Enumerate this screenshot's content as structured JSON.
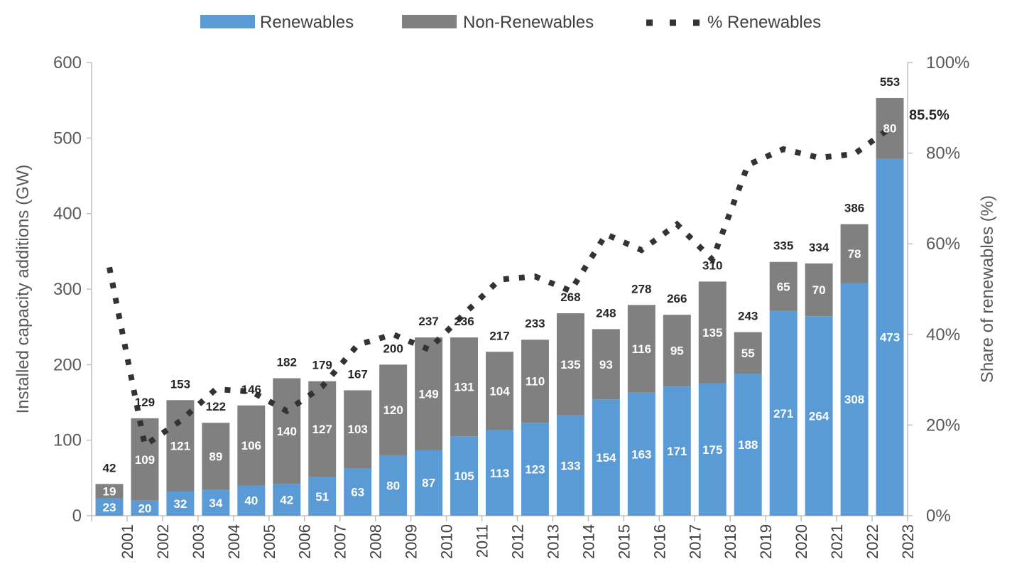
{
  "chart_data": {
    "type": "bar",
    "stacked": true,
    "categories": [
      "2001",
      "2002",
      "2003",
      "2004",
      "2005",
      "2006",
      "2007",
      "2008",
      "2009",
      "2010",
      "2011",
      "2012",
      "2013",
      "2014",
      "2015",
      "2016",
      "2017",
      "2018",
      "2019",
      "2020",
      "2021",
      "2022",
      "2023"
    ],
    "series": [
      {
        "name": "Renewables",
        "color": "#5b9bd5",
        "values": [
          23,
          20,
          32,
          34,
          40,
          42,
          51,
          63,
          80,
          87,
          105,
          113,
          123,
          133,
          154,
          163,
          171,
          175,
          188,
          271,
          264,
          308,
          473
        ]
      },
      {
        "name": "Non-Renewables",
        "color": "#808080",
        "values": [
          19,
          109,
          121,
          89,
          106,
          140,
          127,
          103,
          120,
          149,
          131,
          104,
          110,
          135,
          93,
          116,
          95,
          135,
          55,
          65,
          70,
          78,
          80
        ]
      }
    ],
    "totals": [
      42,
      129,
      153,
      122,
      146,
      182,
      179,
      167,
      200,
      237,
      236,
      217,
      233,
      268,
      248,
      278,
      266,
      310,
      243,
      335,
      334,
      386,
      553
    ],
    "line_series": {
      "name": "% Renewables",
      "color": "#333333",
      "style": "dotted",
      "axis": "right",
      "values": [
        54.8,
        15.5,
        20.9,
        27.9,
        27.4,
        23.1,
        28.5,
        37.7,
        40.0,
        36.7,
        44.5,
        52.1,
        52.8,
        49.6,
        62.1,
        58.6,
        64.3,
        56.5,
        77.4,
        80.9,
        79.0,
        79.8,
        85.5
      ],
      "end_label": "85.5%"
    },
    "ylabel": "Installed capacity additions (GW)",
    "y2label": "Share of renewables (%)",
    "ylim": [
      0,
      600
    ],
    "y2lim": [
      0,
      100
    ],
    "yticks": [
      "0",
      "100",
      "200",
      "300",
      "400",
      "500",
      "600"
    ],
    "y2ticks": [
      "0%",
      "20%",
      "40%",
      "60%",
      "80%",
      "100%"
    ],
    "legend_position": "top",
    "grid": false
  }
}
